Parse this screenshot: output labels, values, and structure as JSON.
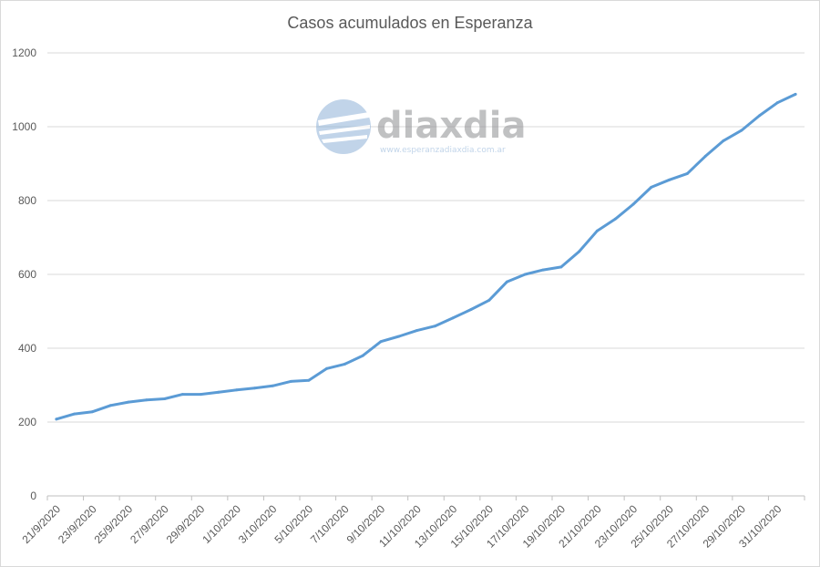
{
  "chart_data": {
    "type": "line",
    "title": "Casos acumulados en Esperanza",
    "xlabel": "",
    "ylabel": "",
    "ylim": [
      0,
      1200
    ],
    "y_ticks": [
      0,
      200,
      400,
      600,
      800,
      1000,
      1200
    ],
    "grid": true,
    "x_tick_labels": [
      "21/9/2020",
      "23/9/2020",
      "25/9/2020",
      "27/9/2020",
      "29/9/2020",
      "1/10/2020",
      "3/10/2020",
      "5/10/2020",
      "7/10/2020",
      "9/10/2020",
      "11/10/2020",
      "13/10/2020",
      "15/10/2020",
      "17/10/2020",
      "19/10/2020",
      "21/10/2020",
      "23/10/2020",
      "25/10/2020",
      "27/10/2020",
      "29/10/2020",
      "31/10/2020"
    ],
    "series": [
      {
        "name": "",
        "color": "#5b9bd5",
        "x": [
          "21/9/2020",
          "22/9/2020",
          "23/9/2020",
          "24/9/2020",
          "25/9/2020",
          "26/9/2020",
          "27/9/2020",
          "28/9/2020",
          "29/9/2020",
          "30/9/2020",
          "1/10/2020",
          "2/10/2020",
          "3/10/2020",
          "4/10/2020",
          "5/10/2020",
          "6/10/2020",
          "7/10/2020",
          "8/10/2020",
          "9/10/2020",
          "10/10/2020",
          "11/10/2020",
          "12/10/2020",
          "13/10/2020",
          "14/10/2020",
          "15/10/2020",
          "16/10/2020",
          "17/10/2020",
          "18/10/2020",
          "19/10/2020",
          "20/10/2020",
          "21/10/2020",
          "22/10/2020",
          "23/10/2020",
          "24/10/2020",
          "25/10/2020",
          "26/10/2020",
          "27/10/2020",
          "28/10/2020",
          "29/10/2020",
          "30/10/2020",
          "31/10/2020",
          "1/11/2020"
        ],
        "values": [
          208,
          222,
          228,
          245,
          254,
          260,
          263,
          275,
          275,
          281,
          287,
          292,
          298,
          310,
          313,
          345,
          357,
          380,
          418,
          432,
          448,
          460,
          482,
          505,
          530,
          580,
          600,
          612,
          620,
          662,
          718,
          750,
          790,
          836,
          856,
          873,
          920,
          962,
          990,
          1030,
          1065,
          1088
        ]
      }
    ]
  },
  "watermark": {
    "brand": "diaxdia",
    "url": "www.esperanzadiaxdia.com.ar"
  }
}
